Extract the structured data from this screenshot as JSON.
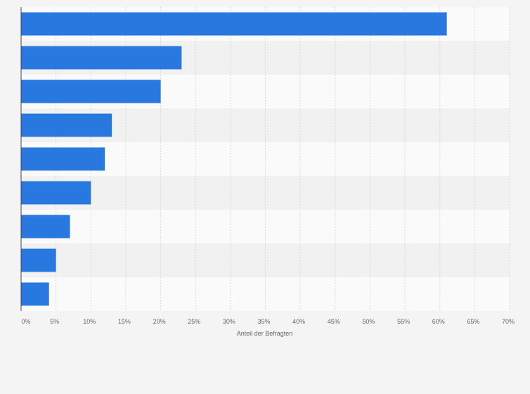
{
  "chart_data": {
    "type": "bar",
    "orientation": "horizontal",
    "categories": [
      "",
      "",
      "",
      "",
      "",
      "",
      "",
      "",
      ""
    ],
    "values": [
      61,
      23,
      20,
      13,
      12,
      10,
      7,
      5,
      4
    ],
    "xlabel": "Anteil der Befragten",
    "xlim": [
      0,
      70
    ],
    "x_ticks": [
      0,
      5,
      10,
      15,
      20,
      25,
      30,
      35,
      40,
      45,
      50,
      55,
      60,
      65,
      70
    ],
    "x_tick_labels": [
      "0%",
      "5%",
      "10%",
      "15%",
      "20%",
      "25%",
      "30%",
      "35%",
      "40%",
      "45%",
      "50%",
      "55%",
      "60%",
      "65%",
      "70%"
    ],
    "grid": true,
    "legend": "none"
  },
  "colors": {
    "bar": "#2878e0",
    "band_light": "#fafafa",
    "band_dark": "#f1f1f1",
    "background": "#f4f4f4",
    "grid": "#d9d9d9",
    "axis": "#444444"
  }
}
